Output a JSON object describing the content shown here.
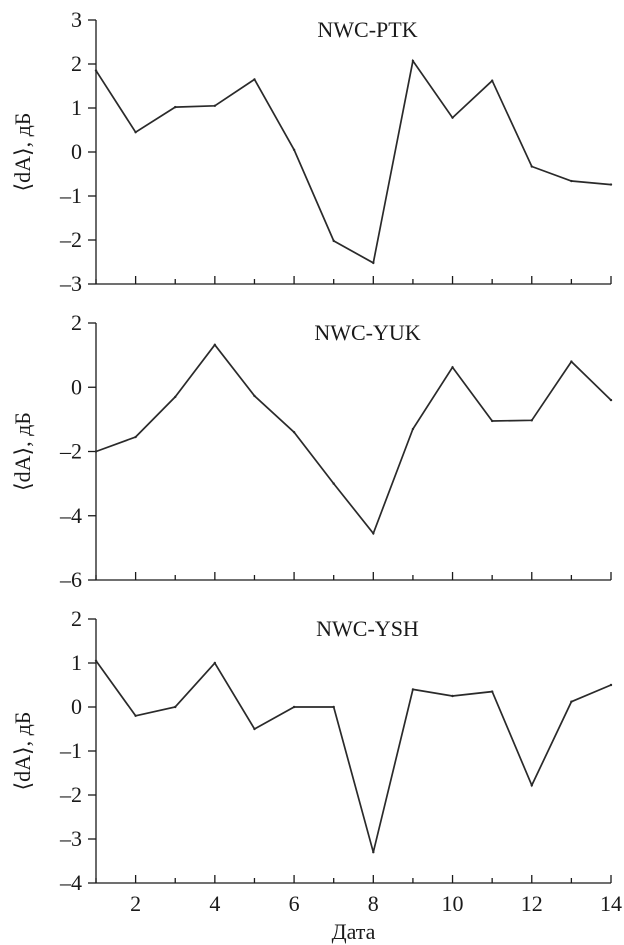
{
  "chart_data": [
    {
      "type": "line",
      "title": "NWC-PTK",
      "xlabel": "",
      "ylabel": "⟨dA⟩, дБ",
      "xlim": [
        1,
        14
      ],
      "ylim": [
        -3,
        3
      ],
      "y_ticks": [
        3,
        2,
        1,
        0,
        -1,
        -2,
        -3
      ],
      "y_tick_labels": [
        "3",
        "2",
        "1",
        "0",
        "–1",
        "–2",
        "–3"
      ],
      "x_ticks": [
        2,
        4,
        6,
        8,
        10,
        12,
        14
      ],
      "x_tick_labels": [],
      "x": [
        1,
        2,
        3,
        4,
        5,
        6,
        7,
        8,
        9,
        10,
        11,
        12,
        13,
        14
      ],
      "series": [
        {
          "values": [
            1.85,
            0.45,
            1.02,
            1.05,
            1.65,
            0.05,
            -2.02,
            -2.52,
            2.07,
            0.78,
            1.62,
            -0.33,
            -0.66,
            -0.74
          ]
        }
      ]
    },
    {
      "type": "line",
      "title": "NWC-YUK",
      "xlabel": "",
      "ylabel": "⟨dA⟩, дБ",
      "xlim": [
        1,
        14
      ],
      "ylim": [
        -6,
        2
      ],
      "y_ticks": [
        2,
        0,
        -2,
        -4,
        -6
      ],
      "y_tick_labels": [
        "2",
        "0",
        "–2",
        "–4",
        "–6"
      ],
      "x_ticks": [
        2,
        4,
        6,
        8,
        10,
        12,
        14
      ],
      "x_tick_labels": [],
      "x": [
        1,
        2,
        3,
        4,
        5,
        6,
        7,
        8,
        9,
        10,
        11,
        12,
        13,
        14
      ],
      "series": [
        {
          "values": [
            -2.0,
            -1.55,
            -0.3,
            1.32,
            -0.27,
            -1.4,
            -3.0,
            -4.55,
            -1.3,
            0.62,
            -1.05,
            -1.03,
            0.8,
            -0.4
          ]
        }
      ]
    },
    {
      "type": "line",
      "title": "NWC-YSH",
      "xlabel": "Дата",
      "ylabel": "⟨dA⟩, дБ",
      "xlim": [
        1,
        14
      ],
      "ylim": [
        -4,
        2
      ],
      "y_ticks": [
        2,
        1,
        0,
        -1,
        -2,
        -3,
        -4
      ],
      "y_tick_labels": [
        "2",
        "1",
        "0",
        "–1",
        "–2",
        "–3",
        "–4"
      ],
      "x_ticks": [
        2,
        4,
        6,
        8,
        10,
        12,
        14
      ],
      "x_tick_labels": [
        "2",
        "4",
        "6",
        "8",
        "10",
        "12",
        "14"
      ],
      "x": [
        1,
        2,
        3,
        4,
        5,
        6,
        7,
        8,
        9,
        10,
        11,
        12,
        13,
        14
      ],
      "series": [
        {
          "values": [
            1.05,
            -0.2,
            0.0,
            1.0,
            -0.5,
            0.0,
            0.0,
            -3.3,
            0.4,
            0.25,
            0.35,
            -1.78,
            0.12,
            0.5
          ]
        }
      ]
    }
  ]
}
